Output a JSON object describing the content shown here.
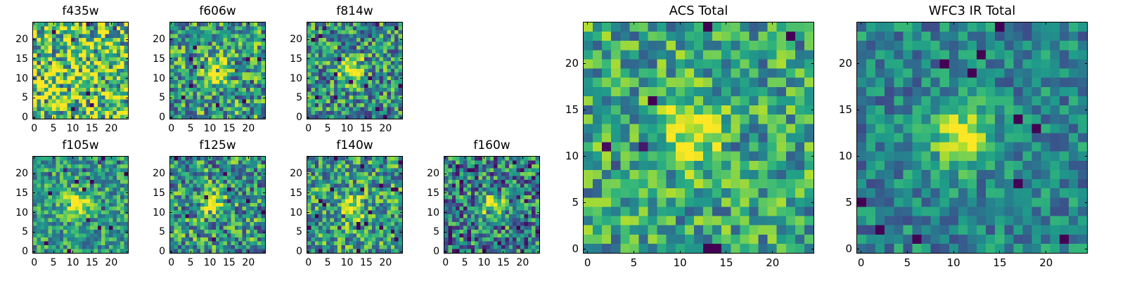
{
  "figure": {
    "panels": [
      {
        "id": "f435w",
        "title": "f435w",
        "kind": "small",
        "seed": 11,
        "blob": 0.05,
        "noise": 0.95,
        "base": 0.72,
        "cx": 12,
        "cy": 12,
        "x_ticks": [
          {
            "v": 0,
            "label": "0"
          },
          {
            "v": 5,
            "label": "5"
          },
          {
            "v": 10,
            "label": "10"
          },
          {
            "v": 15,
            "label": "15"
          },
          {
            "v": 20,
            "label": "20"
          }
        ],
        "y_ticks": [
          {
            "v": 0,
            "label": "0"
          },
          {
            "v": 5,
            "label": "5"
          },
          {
            "v": 10,
            "label": "10"
          },
          {
            "v": 15,
            "label": "15"
          },
          {
            "v": 20,
            "label": "20"
          }
        ]
      },
      {
        "id": "f606w",
        "title": "f606w",
        "kind": "small",
        "seed": 23,
        "blob": 0.55,
        "noise": 0.75,
        "base": 0.55,
        "cx": 11,
        "cy": 12,
        "x_ticks": [
          {
            "v": 0,
            "label": "0"
          },
          {
            "v": 5,
            "label": "5"
          },
          {
            "v": 10,
            "label": "10"
          },
          {
            "v": 15,
            "label": "15"
          },
          {
            "v": 20,
            "label": "20"
          }
        ],
        "y_ticks": [
          {
            "v": 0,
            "label": "0"
          },
          {
            "v": 5,
            "label": "5"
          },
          {
            "v": 10,
            "label": "10"
          },
          {
            "v": 15,
            "label": "15"
          },
          {
            "v": 20,
            "label": "20"
          }
        ]
      },
      {
        "id": "f814w",
        "title": "f814w",
        "kind": "small",
        "seed": 37,
        "blob": 0.6,
        "noise": 0.75,
        "base": 0.5,
        "cx": 11,
        "cy": 12,
        "x_ticks": [
          {
            "v": 0,
            "label": "0"
          },
          {
            "v": 5,
            "label": "5"
          },
          {
            "v": 10,
            "label": "10"
          },
          {
            "v": 15,
            "label": "15"
          },
          {
            "v": 20,
            "label": "20"
          }
        ],
        "y_ticks": [
          {
            "v": 0,
            "label": "0"
          },
          {
            "v": 5,
            "label": "5"
          },
          {
            "v": 10,
            "label": "10"
          },
          {
            "v": 15,
            "label": "15"
          },
          {
            "v": 20,
            "label": "20"
          }
        ]
      },
      {
        "id": "f105w",
        "title": "f105w",
        "kind": "small",
        "seed": 41,
        "blob": 0.55,
        "noise": 0.55,
        "base": 0.55,
        "cx": 11,
        "cy": 12,
        "x_ticks": [
          {
            "v": 0,
            "label": "0"
          },
          {
            "v": 5,
            "label": "5"
          },
          {
            "v": 10,
            "label": "10"
          },
          {
            "v": 15,
            "label": "15"
          },
          {
            "v": 20,
            "label": "20"
          }
        ],
        "y_ticks": [
          {
            "v": 0,
            "label": "0"
          },
          {
            "v": 5,
            "label": "5"
          },
          {
            "v": 10,
            "label": "10"
          },
          {
            "v": 15,
            "label": "15"
          },
          {
            "v": 20,
            "label": "20"
          }
        ]
      },
      {
        "id": "f125w",
        "title": "f125w",
        "kind": "small",
        "seed": 53,
        "blob": 0.45,
        "noise": 0.75,
        "base": 0.52,
        "cx": 11,
        "cy": 12,
        "x_ticks": [
          {
            "v": 0,
            "label": "0"
          },
          {
            "v": 5,
            "label": "5"
          },
          {
            "v": 10,
            "label": "10"
          },
          {
            "v": 15,
            "label": "15"
          },
          {
            "v": 20,
            "label": "20"
          }
        ],
        "y_ticks": [
          {
            "v": 0,
            "label": "0"
          },
          {
            "v": 5,
            "label": "5"
          },
          {
            "v": 10,
            "label": "10"
          },
          {
            "v": 15,
            "label": "15"
          },
          {
            "v": 20,
            "label": "20"
          }
        ]
      },
      {
        "id": "f140w",
        "title": "f140w",
        "kind": "small",
        "seed": 67,
        "blob": 0.5,
        "noise": 0.7,
        "base": 0.55,
        "cx": 11,
        "cy": 11,
        "x_ticks": [
          {
            "v": 0,
            "label": "0"
          },
          {
            "v": 5,
            "label": "5"
          },
          {
            "v": 10,
            "label": "10"
          },
          {
            "v": 15,
            "label": "15"
          },
          {
            "v": 20,
            "label": "20"
          }
        ],
        "y_ticks": [
          {
            "v": 0,
            "label": "0"
          },
          {
            "v": 5,
            "label": "5"
          },
          {
            "v": 10,
            "label": "10"
          },
          {
            "v": 15,
            "label": "15"
          },
          {
            "v": 20,
            "label": "20"
          }
        ]
      },
      {
        "id": "f160w",
        "title": "f160w",
        "kind": "small",
        "seed": 79,
        "blob": 0.55,
        "noise": 0.8,
        "base": 0.42,
        "cx": 12,
        "cy": 12,
        "x_ticks": [
          {
            "v": 0,
            "label": "0"
          },
          {
            "v": 5,
            "label": "5"
          },
          {
            "v": 10,
            "label": "10"
          },
          {
            "v": 15,
            "label": "15"
          },
          {
            "v": 20,
            "label": "20"
          }
        ],
        "y_ticks": [
          {
            "v": 0,
            "label": "0"
          },
          {
            "v": 5,
            "label": "5"
          },
          {
            "v": 10,
            "label": "10"
          },
          {
            "v": 15,
            "label": "15"
          },
          {
            "v": 20,
            "label": "20"
          }
        ]
      },
      {
        "id": "acs-total",
        "title": "ACS Total",
        "kind": "large",
        "seed": 97,
        "blob": 0.45,
        "noise": 0.6,
        "base": 0.58,
        "cx": 11,
        "cy": 12,
        "x_ticks": [
          {
            "v": 0,
            "label": "0"
          },
          {
            "v": 5,
            "label": "5"
          },
          {
            "v": 10,
            "label": "10"
          },
          {
            "v": 15,
            "label": "15"
          },
          {
            "v": 20,
            "label": "20"
          }
        ],
        "y_ticks": [
          {
            "v": 0,
            "label": "0"
          },
          {
            "v": 5,
            "label": "5"
          },
          {
            "v": 10,
            "label": "10"
          },
          {
            "v": 15,
            "label": "15"
          },
          {
            "v": 20,
            "label": "20"
          }
        ]
      },
      {
        "id": "wfc3-ir-total",
        "title": "WFC3 IR Total",
        "kind": "large",
        "seed": 113,
        "blob": 0.6,
        "noise": 0.45,
        "base": 0.45,
        "cx": 11,
        "cy": 12,
        "x_ticks": [
          {
            "v": 0,
            "label": "0"
          },
          {
            "v": 5,
            "label": "5"
          },
          {
            "v": 10,
            "label": "10"
          },
          {
            "v": 15,
            "label": "15"
          },
          {
            "v": 20,
            "label": "20"
          }
        ],
        "y_ticks": [
          {
            "v": 0,
            "label": "0"
          },
          {
            "v": 5,
            "label": "5"
          },
          {
            "v": 10,
            "label": "10"
          },
          {
            "v": 15,
            "label": "15"
          },
          {
            "v": 20,
            "label": "20"
          }
        ]
      }
    ]
  }
}
